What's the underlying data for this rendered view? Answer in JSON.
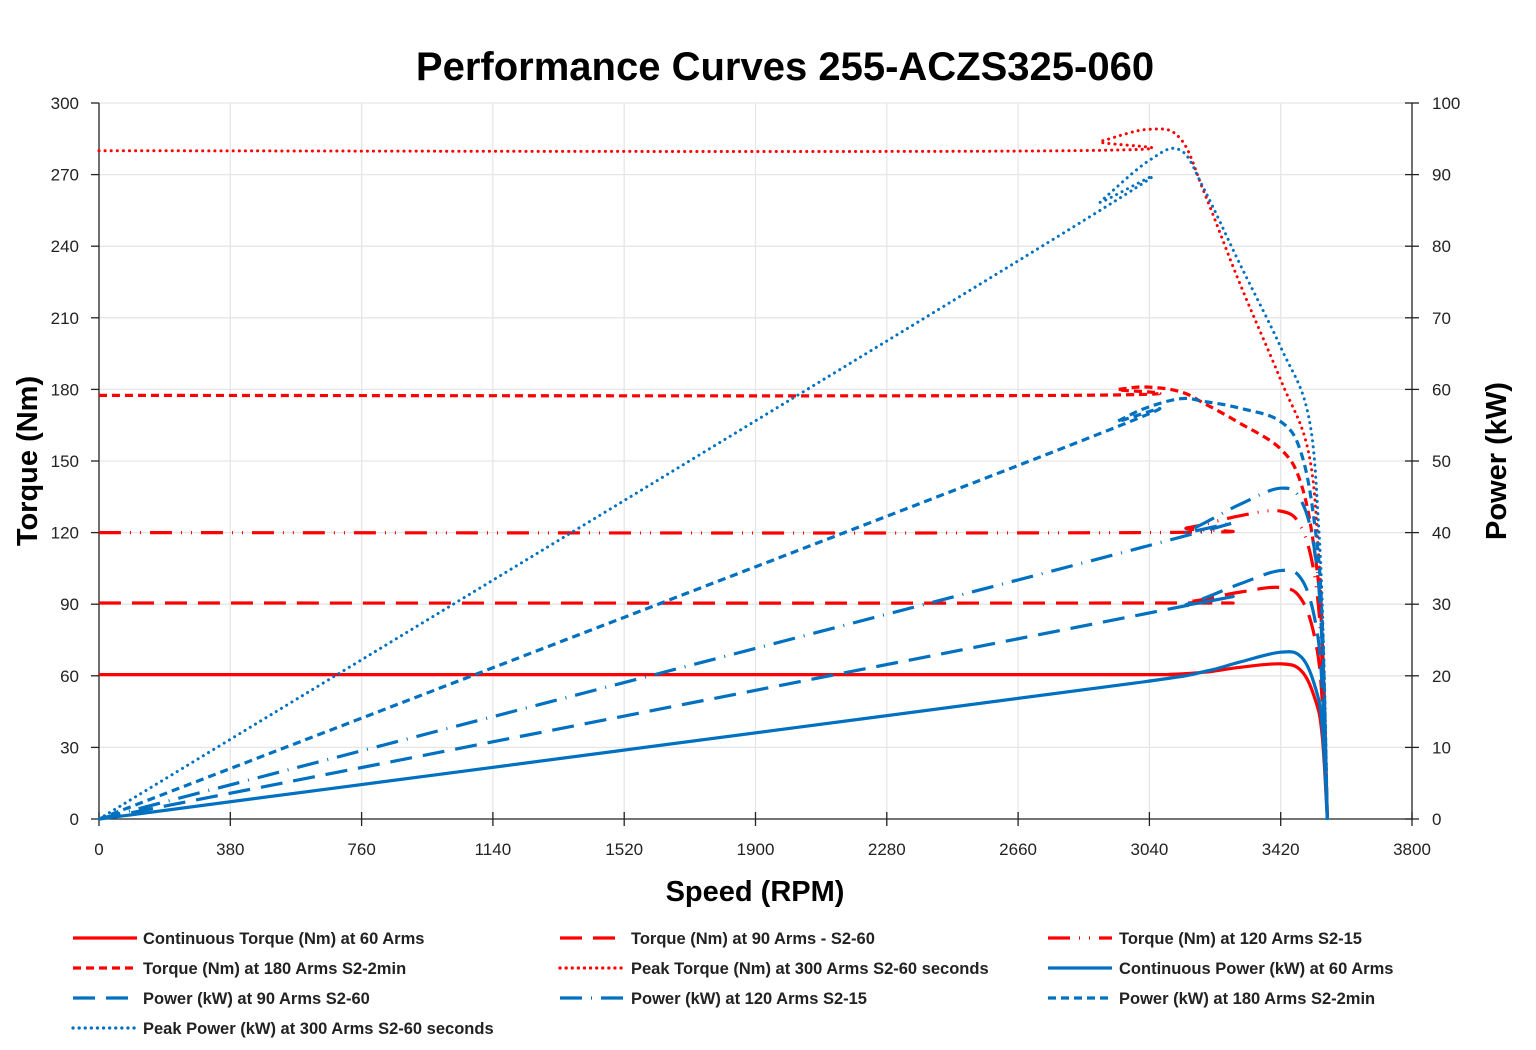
{
  "chart_data": {
    "type": "line",
    "title": "Performance Curves 255-ACZS325-060",
    "xlabel": "Speed (RPM)",
    "ylabel": "Torque (Nm)",
    "y2label": "Power (kW)",
    "xlim": [
      0,
      3800
    ],
    "ylim": [
      0,
      300
    ],
    "y2lim": [
      0,
      100
    ],
    "xticks": [
      0,
      380,
      760,
      1140,
      1520,
      1900,
      2280,
      2660,
      3040,
      3420,
      3800
    ],
    "yticks": [
      0,
      30,
      60,
      90,
      120,
      150,
      180,
      210,
      240,
      270,
      300
    ],
    "y2ticks": [
      0,
      10,
      20,
      30,
      40,
      50,
      60,
      70,
      80,
      90,
      100
    ],
    "grid": true,
    "legend_position": "bottom",
    "series": [
      {
        "name": "Continuous Torque (Nm) at 60 Arms",
        "axis": "left",
        "color": "#FF0000",
        "style": "solid",
        "x": [
          0,
          1000,
          2000,
          3000,
          3100,
          3200,
          3300,
          3420,
          3480,
          3520,
          3540,
          3555
        ],
        "y": [
          60.5,
          60.5,
          60.5,
          60.5,
          60.6,
          61.5,
          63.5,
          65,
          62,
          50,
          35,
          0
        ]
      },
      {
        "name": "Torque (Nm) at 90 Arms - S2-60",
        "axis": "left",
        "color": "#FF0000",
        "style": "long-dash",
        "x": [
          0,
          3000,
          3150,
          3300,
          3420,
          3480,
          3520,
          3540,
          3555
        ],
        "y": [
          90.5,
          90.5,
          91,
          95,
          97,
          92,
          75,
          50,
          0
        ]
      },
      {
        "name": "Torque (Nm) at 120 Arms S2-15",
        "axis": "left",
        "color": "#FF0000",
        "style": "long-dash-dot-dot",
        "x": [
          0,
          3000,
          3150,
          3300,
          3420,
          3480,
          3520,
          3540,
          3555
        ],
        "y": [
          120,
          120,
          122,
          127,
          129,
          122,
          100,
          65,
          0
        ]
      },
      {
        "name": "Torque (Nm) at 180 Arms S2-2min",
        "axis": "left",
        "color": "#FF0000",
        "style": "short-dash",
        "x": [
          0,
          2800,
          2950,
          3030,
          3130,
          3200,
          3300,
          3420,
          3480,
          3520,
          3540,
          3555
        ],
        "y": [
          177.5,
          177.5,
          180,
          181,
          179,
          174,
          166,
          155,
          140,
          110,
          75,
          0
        ]
      },
      {
        "name": "Peak Torque (Nm) at 300 Arms S2-60 seconds",
        "axis": "left",
        "color": "#FF0000",
        "style": "dotted",
        "x": [
          0,
          2800,
          2900,
          3040,
          3130,
          3200,
          3300,
          3420,
          3500,
          3530,
          3545,
          3555
        ],
        "y": [
          280,
          280,
          284,
          289,
          285,
          262,
          225,
          184,
          154,
          110,
          60,
          0
        ]
      },
      {
        "name": "Continuous Power (kW) at 60 Arms",
        "axis": "right",
        "color": "#0070C0",
        "style": "solid",
        "x": [
          0,
          1000,
          2000,
          3000,
          3200,
          3300,
          3420,
          3480,
          3520,
          3540,
          3555
        ],
        "y": [
          0,
          6.33,
          12.67,
          19.0,
          20.6,
          21.9,
          23.3,
          22.6,
          18.4,
          13.0,
          0
        ]
      },
      {
        "name": "Power (kW) at 90 Arms S2-60",
        "axis": "right",
        "color": "#0070C0",
        "style": "long-dash",
        "x": [
          0,
          3000,
          3150,
          3300,
          3420,
          3480,
          3520,
          3540,
          3555
        ],
        "y": [
          0,
          28.4,
          30.0,
          32.8,
          34.7,
          33.5,
          27.6,
          18.5,
          0
        ]
      },
      {
        "name": "Power (kW) at 120 Arms S2-15",
        "axis": "right",
        "color": "#0070C0",
        "style": "long-dash-dot",
        "x": [
          0,
          3000,
          3150,
          3300,
          3420,
          3480,
          3520,
          3540,
          3555
        ],
        "y": [
          0,
          37.7,
          40.2,
          43.9,
          46.2,
          44.4,
          36.9,
          24.1,
          0
        ]
      },
      {
        "name": "Power (kW) at 180 Arms S2-2min",
        "axis": "right",
        "color": "#0070C0",
        "style": "short-dash",
        "x": [
          0,
          2800,
          2950,
          3030,
          3130,
          3200,
          3300,
          3420,
          3480,
          3520,
          3540,
          3555
        ],
        "y": [
          0,
          52.0,
          55.6,
          57.4,
          58.7,
          58.3,
          57.4,
          55.5,
          51.0,
          40.5,
          27.8,
          0
        ]
      },
      {
        "name": "Peak Power (kW) at 300 Arms S2-60 seconds",
        "axis": "right",
        "color": "#0070C0",
        "style": "dotted",
        "x": [
          0,
          2800,
          2900,
          3040,
          3130,
          3200,
          3300,
          3420,
          3500,
          3530,
          3545,
          3555
        ],
        "y": [
          0,
          82.1,
          86.3,
          92.0,
          93.4,
          87.8,
          77.7,
          65.9,
          56.4,
          40.7,
          22.3,
          0
        ]
      }
    ]
  }
}
